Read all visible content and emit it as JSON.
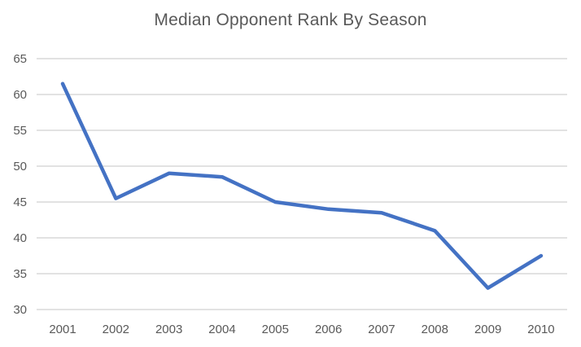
{
  "chart_data": {
    "type": "line",
    "title": "Median Opponent Rank By Season",
    "categories": [
      "2001",
      "2002",
      "2003",
      "2004",
      "2005",
      "2006",
      "2007",
      "2008",
      "2009",
      "2010"
    ],
    "series": [
      {
        "name": "Median Opponent Rank",
        "values": [
          61.5,
          45.5,
          49,
          48.5,
          45,
          44,
          43.5,
          41,
          33,
          37.5
        ]
      }
    ],
    "xlabel": "",
    "ylabel": "",
    "ylim": [
      30,
      65
    ],
    "y_ticks": [
      30,
      35,
      40,
      45,
      50,
      55,
      60,
      65
    ],
    "grid": "horizontal",
    "legend_position": "none",
    "colors": {
      "line": "#4472C4",
      "gridline": "#D9D9D9",
      "tick_label": "#595959",
      "title": "#595959",
      "background": "#FFFFFF"
    }
  }
}
